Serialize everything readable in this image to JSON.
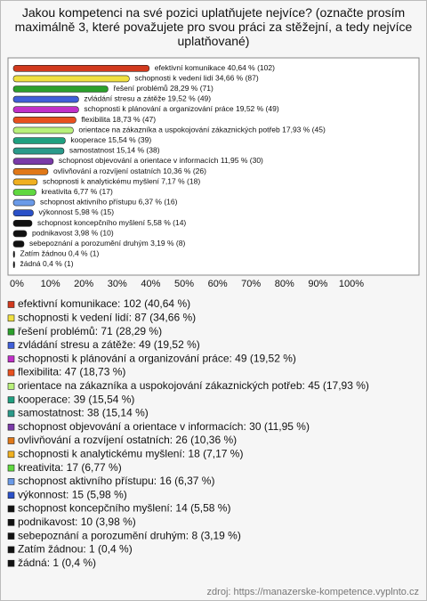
{
  "chart_data": {
    "type": "bar",
    "title": "Jakou kompetenci na své pozici uplatňujete nejvíce? (označte prosím maximálně 3, které považujete pro svou práci za stěžejní, a tedy nejvíce uplatňované)",
    "source": "zdroj: https://manazerske-kompetence.vyplnto.cz",
    "orientation": "horizontal",
    "categories": [
      "efektivní komunikace",
      "schopnosti k vedení lidí",
      "řešení problémů",
      "zvládání stresu a zátěže",
      "schopnosti k plánování a organizování práce",
      "flexibilita",
      "orientace na zákazníka a uspokojování zákaznických potřeb",
      "kooperace",
      "samostatnost",
      "schopnost objevování a orientace v informacích",
      "ovlivňování a rozvíjení ostatních",
      "schopnosti k analytickému myšlení",
      "kreativita",
      "schopnost aktivního přístupu",
      "výkonnost",
      "schopnost koncepčního myšlení",
      "podnikavost",
      "sebepoznání a porozumění druhým",
      "Zatím žádnou",
      "žádná"
    ],
    "values": [
      40.64,
      34.66,
      28.29,
      19.52,
      19.52,
      18.73,
      17.93,
      15.54,
      15.14,
      11.95,
      10.36,
      7.17,
      6.77,
      6.37,
      5.98,
      5.58,
      3.98,
      3.19,
      0.4,
      0.4
    ],
    "value_labels": [
      "40,64 % (102)",
      "34,66 % (87)",
      "28,29 % (71)",
      "19,52 % (49)",
      "19,52 % (49)",
      "18,73 % (47)",
      "17,93 % (45)",
      "15,54 % (39)",
      "15,14 % (38)",
      "11,95 % (30)",
      "10,36 % (26)",
      "7,17 % (18)",
      "6,77 % (17)",
      "6,37 % (16)",
      "5,98 % (15)",
      "5,58 % (14)",
      "3,98 % (10)",
      "3,19 % (8)",
      "0,4 % (1)",
      "0,4 % (1)"
    ],
    "legend_labels": [
      "efektivní komunikace: 102 (40,64 %)",
      "schopnosti k vedení lidí: 87 (34,66 %)",
      "řešení problémů: 71 (28,29 %)",
      "zvládání stresu a zátěže: 49 (19,52 %)",
      "schopnosti k plánování a organizování práce: 49 (19,52 %)",
      "flexibilita: 47 (18,73 %)",
      "orientace na zákazníka a uspokojování zákaznických potřeb: 45 (17,93 %)",
      "kooperace: 39 (15,54 %)",
      "samostatnost: 38 (15,14 %)",
      "schopnost objevování a orientace v informacích: 30 (11,95 %)",
      "ovlivňování a rozvíjení ostatních: 26 (10,36 %)",
      "schopnosti k analytickému myšlení: 18 (7,17 %)",
      "kreativita: 17 (6,77 %)",
      "schopnost aktivního přístupu: 16 (6,37 %)",
      "výkonnost: 15 (5,98 %)",
      "schopnost koncepčního myšlení: 14 (5,58 %)",
      "podnikavost: 10 (3,98 %)",
      "sebepoznání a porozumění druhým: 8 (3,19 %)",
      "Zatím žádnou: 1 (0,4 %)",
      "žádná: 1 (0,4 %)"
    ],
    "colors": [
      "#d23a1e",
      "#f0e040",
      "#2ca02c",
      "#3f5fd8",
      "#c030c8",
      "#e8501e",
      "#b8f07a",
      "#1fa080",
      "#2a9a8a",
      "#7a3aa8",
      "#e07818",
      "#f0b020",
      "#60d840",
      "#6a9ae8",
      "#2a50c8",
      "#111111",
      "#111111",
      "#111111",
      "#111111",
      "#111111"
    ],
    "xlim": [
      0,
      100
    ],
    "xticks": [
      {
        "value": 0,
        "label": "0%"
      },
      {
        "value": 10,
        "label": "10%"
      },
      {
        "value": 20,
        "label": "20%"
      },
      {
        "value": 30,
        "label": "30%"
      },
      {
        "value": 40,
        "label": "40%"
      },
      {
        "value": 50,
        "label": "50%"
      },
      {
        "value": 60,
        "label": "60%"
      },
      {
        "value": 70,
        "label": "70%"
      },
      {
        "value": 80,
        "label": "80%"
      },
      {
        "value": 90,
        "label": "90%"
      },
      {
        "value": 100,
        "label": "100%"
      }
    ]
  }
}
